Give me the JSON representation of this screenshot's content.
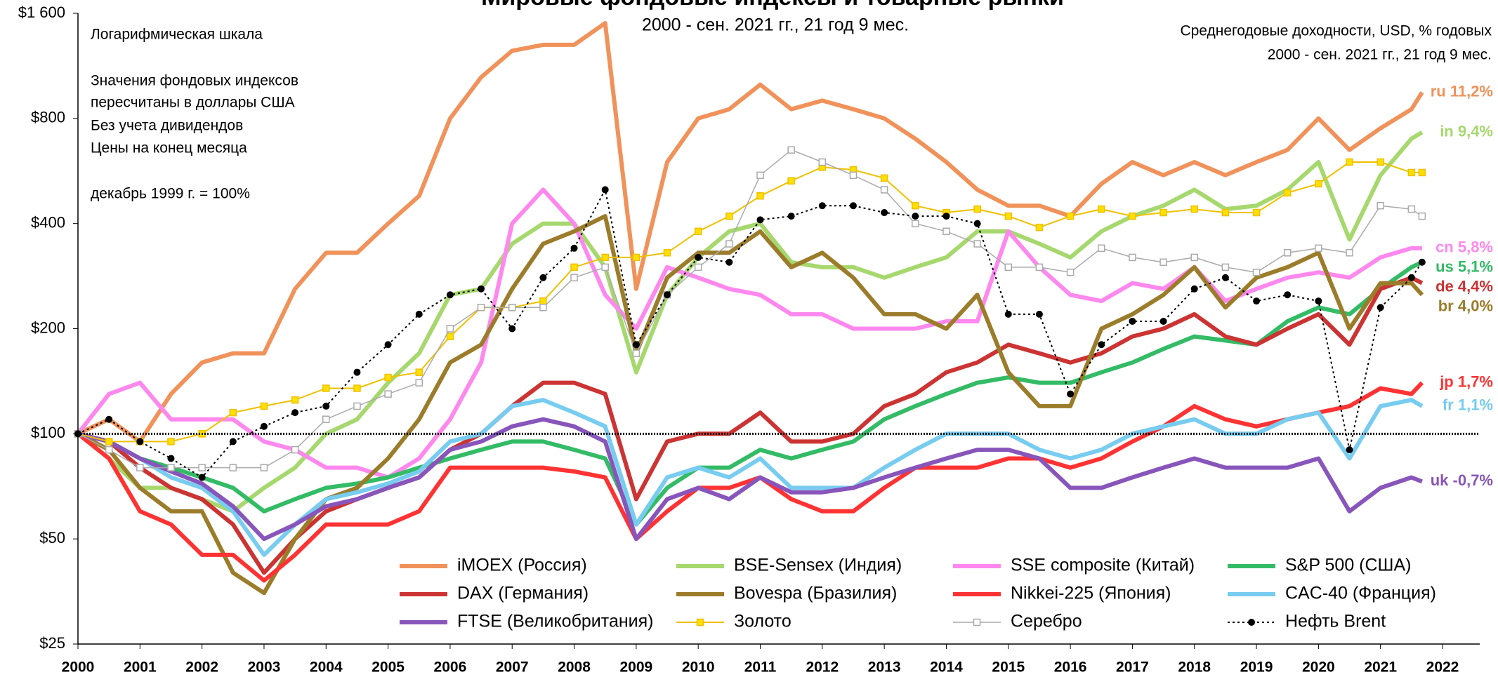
{
  "chart_data": {
    "type": "line",
    "title": "Мировые фондовые индексы и товарные рынки",
    "subtitle": "2000 - сен. 2021 гг.,   21 год 9 мес.",
    "annotations": [
      "Логарифмическая шкала",
      "Значения фондовых индексов",
      "пересчитаны в доллары США",
      "Без учета дивидендов",
      "Цены на конец месяца",
      "декабрь 1999 г. = 100%"
    ],
    "right_notes": [
      "Среднегодовые доходности, USD, % годовых",
      "2000 - сен. 2021 гг., 21 год 9 мес."
    ],
    "log_scale": true,
    "reference_line": 100,
    "xlim": [
      2000,
      2022.6
    ],
    "xticks": [
      2000,
      2001,
      2002,
      2003,
      2004,
      2005,
      2006,
      2007,
      2008,
      2009,
      2010,
      2011,
      2012,
      2013,
      2014,
      2015,
      2016,
      2017,
      2018,
      2019,
      2020,
      2021,
      2022
    ],
    "ylim": [
      25,
      1600
    ],
    "yticks": [
      {
        "value": 25,
        "label": "$25"
      },
      {
        "value": 50,
        "label": "$50"
      },
      {
        "value": 100,
        "label": "$100"
      },
      {
        "value": 200,
        "label": "$200"
      },
      {
        "value": 400,
        "label": "$400"
      },
      {
        "value": 800,
        "label": "$800"
      },
      {
        "value": 1600,
        "label": "$1 600"
      }
    ],
    "x": [
      2000,
      2000.5,
      2001,
      2001.5,
      2002,
      2002.5,
      2003,
      2003.5,
      2004,
      2004.5,
      2005,
      2005.5,
      2006,
      2006.5,
      2007,
      2007.5,
      2008,
      2008.5,
      2009,
      2009.5,
      2010,
      2010.5,
      2011,
      2011.5,
      2012,
      2012.5,
      2013,
      2013.5,
      2014,
      2014.5,
      2015,
      2015.5,
      2016,
      2016.5,
      2017,
      2017.5,
      2018,
      2018.5,
      2019,
      2019.5,
      2020,
      2020.5,
      2021,
      2021.5,
      2021.67
    ],
    "series": [
      {
        "name": "iMOEX (Россия)",
        "color": "#f0925a",
        "width": 6,
        "end_label": "ru 11,2%",
        "values": [
          100,
          110,
          95,
          130,
          160,
          170,
          170,
          260,
          330,
          330,
          400,
          480,
          800,
          1050,
          1250,
          1300,
          1300,
          1500,
          260,
          600,
          800,
          850,
          1000,
          850,
          900,
          850,
          800,
          700,
          600,
          500,
          450,
          450,
          420,
          520,
          600,
          550,
          600,
          550,
          600,
          650,
          800,
          650,
          750,
          850,
          950
        ]
      },
      {
        "name": "BSE-Sensex (Индия)",
        "color": "#a6d86e",
        "width": 6,
        "end_label": "in 9,4%",
        "values": [
          100,
          85,
          70,
          70,
          65,
          60,
          70,
          80,
          100,
          110,
          140,
          170,
          250,
          260,
          350,
          400,
          400,
          300,
          150,
          250,
          320,
          380,
          400,
          310,
          300,
          300,
          280,
          300,
          320,
          380,
          380,
          350,
          320,
          380,
          420,
          450,
          500,
          440,
          450,
          500,
          600,
          360,
          550,
          700,
          730
        ]
      },
      {
        "name": "SSE composite (Китай)",
        "color": "#ff88ee",
        "width": 6,
        "end_label": "cn 5,8%",
        "values": [
          100,
          130,
          140,
          110,
          110,
          110,
          95,
          90,
          80,
          80,
          75,
          85,
          110,
          160,
          400,
          500,
          400,
          250,
          200,
          300,
          280,
          260,
          250,
          220,
          220,
          200,
          200,
          200,
          210,
          210,
          380,
          300,
          250,
          240,
          270,
          260,
          300,
          240,
          260,
          280,
          290,
          280,
          320,
          340,
          340
        ]
      },
      {
        "name": "S&P 500 (США)",
        "color": "#33bb66",
        "width": 6,
        "end_label": "us 5,1%",
        "values": [
          100,
          95,
          85,
          80,
          75,
          70,
          60,
          65,
          70,
          72,
          75,
          80,
          85,
          90,
          95,
          95,
          90,
          85,
          55,
          70,
          80,
          80,
          90,
          85,
          90,
          95,
          110,
          120,
          130,
          140,
          145,
          140,
          140,
          150,
          160,
          175,
          190,
          185,
          180,
          210,
          230,
          220,
          260,
          300,
          310
        ]
      },
      {
        "name": "DAX (Германия)",
        "color": "#cc3333",
        "width": 6,
        "end_label": "de 4,4%",
        "values": [
          100,
          95,
          80,
          70,
          65,
          55,
          40,
          50,
          60,
          65,
          70,
          75,
          90,
          100,
          120,
          140,
          140,
          130,
          65,
          95,
          100,
          100,
          115,
          95,
          95,
          100,
          120,
          130,
          150,
          160,
          180,
          170,
          160,
          170,
          190,
          200,
          220,
          190,
          180,
          200,
          220,
          180,
          260,
          280,
          270
        ]
      },
      {
        "name": "Bovespa (Бразилия)",
        "color": "#9b7c2a",
        "width": 6,
        "end_label": "br 4,0%",
        "values": [
          100,
          90,
          70,
          60,
          60,
          40,
          35,
          50,
          65,
          70,
          85,
          110,
          160,
          180,
          260,
          350,
          380,
          420,
          170,
          280,
          330,
          330,
          380,
          300,
          330,
          280,
          220,
          220,
          200,
          250,
          150,
          120,
          120,
          200,
          220,
          250,
          300,
          230,
          280,
          300,
          330,
          200,
          270,
          270,
          250
        ]
      },
      {
        "name": "Nikkei-225 (Япония)",
        "color": "#ff3333",
        "width": 6,
        "end_label": "jp 1,7%",
        "values": [
          100,
          85,
          60,
          55,
          45,
          45,
          38,
          45,
          55,
          55,
          55,
          60,
          80,
          80,
          80,
          80,
          78,
          75,
          50,
          60,
          70,
          70,
          75,
          65,
          60,
          60,
          70,
          80,
          80,
          80,
          85,
          85,
          80,
          85,
          95,
          105,
          120,
          110,
          105,
          110,
          115,
          120,
          135,
          130,
          140
        ]
      },
      {
        "name": "CAC-40 (Франция)",
        "color": "#77ccf0",
        "width": 6,
        "end_label": "fr 1,1%",
        "values": [
          100,
          95,
          85,
          75,
          70,
          60,
          45,
          55,
          65,
          68,
          72,
          78,
          95,
          100,
          120,
          125,
          115,
          105,
          55,
          75,
          80,
          75,
          85,
          70,
          70,
          70,
          80,
          90,
          100,
          100,
          100,
          90,
          85,
          90,
          100,
          105,
          110,
          100,
          100,
          110,
          115,
          85,
          120,
          125,
          120
        ]
      },
      {
        "name": "FTSE (Великобритания)",
        "color": "#8855bb",
        "width": 6,
        "end_label": "uk -0,7%",
        "values": [
          100,
          95,
          85,
          78,
          72,
          62,
          50,
          55,
          62,
          65,
          70,
          75,
          90,
          95,
          105,
          110,
          105,
          95,
          50,
          65,
          70,
          65,
          75,
          68,
          68,
          70,
          75,
          80,
          85,
          90,
          90,
          85,
          70,
          70,
          75,
          80,
          85,
          80,
          80,
          80,
          85,
          60,
          70,
          75,
          73
        ]
      },
      {
        "name": "Золото",
        "color": "#f0c000",
        "width": 2,
        "marker": "square",
        "marker_fill": "#ffe000",
        "values": [
          100,
          95,
          95,
          95,
          100,
          115,
          120,
          125,
          135,
          135,
          145,
          150,
          190,
          230,
          230,
          240,
          300,
          320,
          320,
          330,
          380,
          420,
          480,
          530,
          580,
          570,
          540,
          450,
          430,
          440,
          420,
          390,
          420,
          440,
          420,
          430,
          440,
          430,
          430,
          490,
          520,
          600,
          600,
          560,
          560
        ]
      },
      {
        "name": "Серебро",
        "color": "#aaaaaa",
        "width": 1.5,
        "marker": "square",
        "marker_fill": "#ffffff",
        "values": [
          100,
          90,
          80,
          80,
          80,
          80,
          80,
          90,
          110,
          120,
          130,
          140,
          200,
          230,
          230,
          230,
          280,
          300,
          170,
          250,
          300,
          350,
          550,
          650,
          600,
          550,
          500,
          400,
          380,
          350,
          300,
          300,
          290,
          340,
          320,
          310,
          320,
          300,
          290,
          330,
          340,
          330,
          450,
          440,
          420
        ]
      },
      {
        "name": "Нефть Brent",
        "color": "#000000",
        "width": 2,
        "dash": "3 4",
        "marker": "dot",
        "marker_fill": "#000000",
        "values": [
          100,
          110,
          95,
          85,
          75,
          95,
          105,
          115,
          120,
          150,
          180,
          220,
          250,
          260,
          200,
          280,
          340,
          500,
          180,
          250,
          320,
          310,
          410,
          420,
          450,
          450,
          430,
          420,
          420,
          400,
          220,
          220,
          130,
          180,
          210,
          210,
          260,
          280,
          240,
          250,
          240,
          90,
          230,
          280,
          310
        ]
      }
    ]
  }
}
